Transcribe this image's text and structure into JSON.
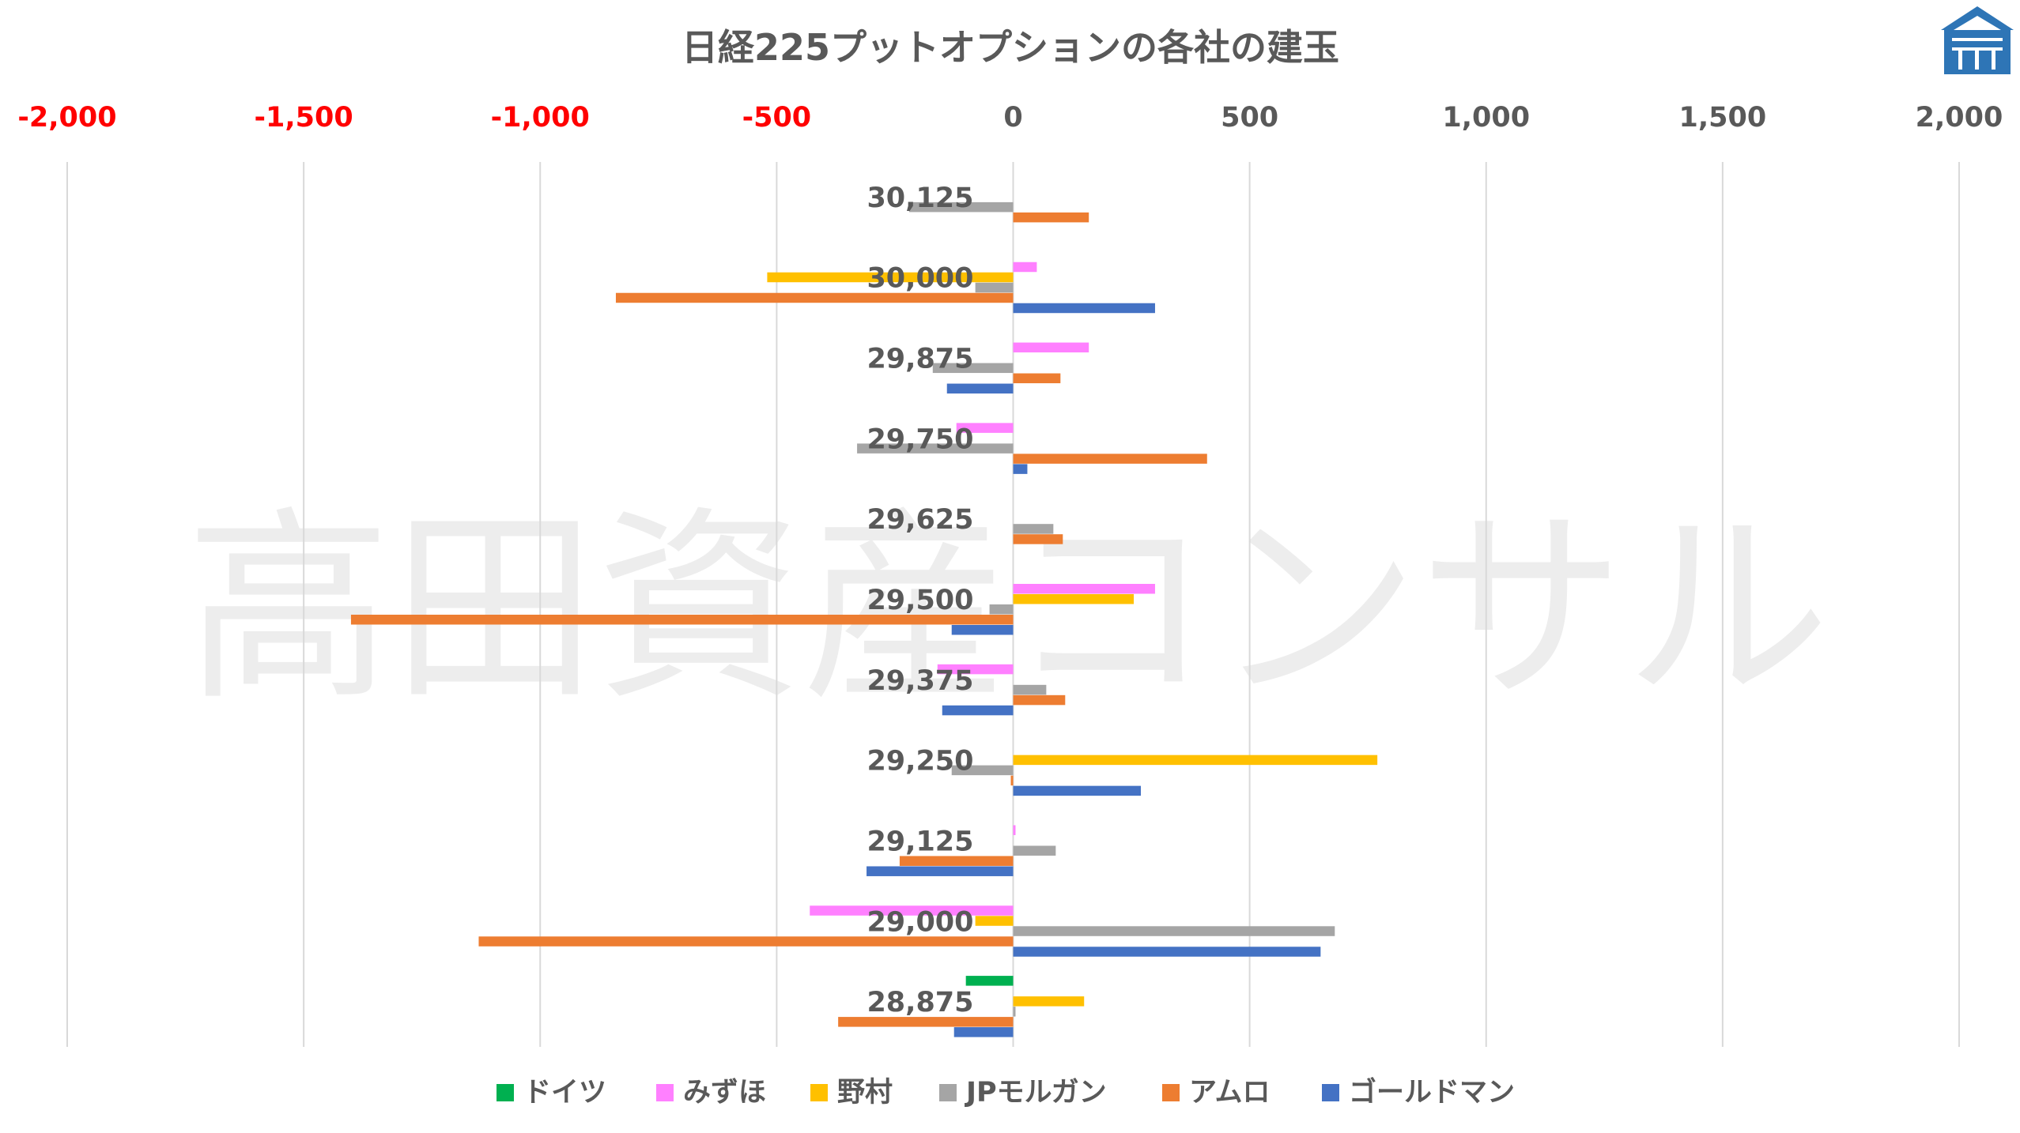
{
  "chart_data": {
    "type": "bar",
    "orientation": "horizontal",
    "title": "日経225プットオプションの各社の建玉",
    "watermark": "高田資産コンサル",
    "xlim": [
      -2000,
      2000
    ],
    "x_ticks": [
      "-2,000",
      "-1,500",
      "-1,000",
      "-500",
      "0",
      "500",
      "1,000",
      "1,500",
      "2,000"
    ],
    "x_tick_values": [
      -2000,
      -1500,
      -1000,
      -500,
      0,
      500,
      1000,
      1500,
      2000
    ],
    "x_axis_position": "top",
    "grid": true,
    "legend_position": "bottom",
    "categories": [
      "30,125",
      "30,000",
      "29,875",
      "29,750",
      "29,625",
      "29,500",
      "29,375",
      "29,250",
      "29,125",
      "29,000",
      "28,875"
    ],
    "series": [
      {
        "name": "ドイツ",
        "color": "#00b050",
        "values": [
          0,
          0,
          0,
          0,
          0,
          0,
          0,
          0,
          0,
          0,
          -100
        ]
      },
      {
        "name": "みずほ",
        "color": "#ff80ff",
        "values": [
          0,
          50,
          160,
          -120,
          0,
          300,
          -160,
          0,
          5,
          -430,
          0
        ]
      },
      {
        "name": "野村",
        "color": "#ffc000",
        "values": [
          0,
          -520,
          0,
          0,
          0,
          255,
          0,
          770,
          0,
          -80,
          150
        ]
      },
      {
        "name": "JPモルガン",
        "color": "#a5a5a5",
        "values": [
          -220,
          -80,
          -170,
          -330,
          85,
          -50,
          70,
          -130,
          90,
          680,
          5
        ]
      },
      {
        "name": "アムロ",
        "color": "#ed7d31",
        "values": [
          160,
          -840,
          100,
          410,
          105,
          -1400,
          110,
          -5,
          -240,
          -1130,
          -370
        ]
      },
      {
        "name": "ゴールドマン",
        "color": "#4472c4",
        "values": [
          0,
          300,
          -140,
          30,
          0,
          -130,
          -150,
          270,
          -310,
          650,
          -125
        ]
      }
    ]
  },
  "logo": {
    "icon": "building-logo-icon",
    "color": "#2e75b6"
  }
}
